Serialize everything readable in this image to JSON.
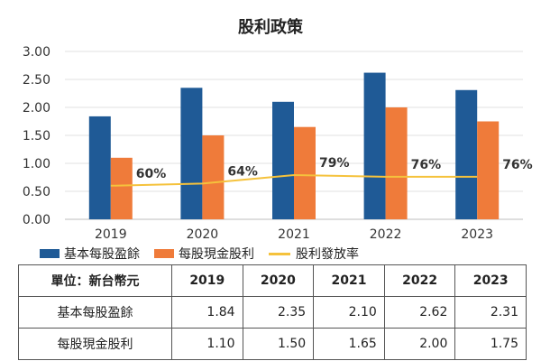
{
  "chart_data": {
    "type": "bar",
    "title": "股利政策",
    "categories": [
      "2019",
      "2020",
      "2021",
      "2022",
      "2023"
    ],
    "series": [
      {
        "name": "基本每股盈餘",
        "type": "bar",
        "color": "#1f5a96",
        "values": [
          1.84,
          2.35,
          2.1,
          2.62,
          2.31
        ]
      },
      {
        "name": "每股現金股利",
        "type": "bar",
        "color": "#ef7b3a",
        "values": [
          1.1,
          1.5,
          1.65,
          2.0,
          1.75
        ]
      },
      {
        "name": "股利發放率",
        "type": "line",
        "color": "#f5c23c",
        "values": [
          60,
          64,
          79,
          76,
          76
        ],
        "labels": [
          "60%",
          "64%",
          "79%",
          "76%",
          "76%"
        ]
      }
    ],
    "yticks": [
      "0.00",
      "0.50",
      "1.00",
      "1.50",
      "2.00",
      "2.50",
      "3.00"
    ],
    "ylim": [
      0,
      3
    ],
    "line_scale_note": "",
    "grid": true,
    "legend_position": "bottom"
  },
  "table": {
    "header": [
      "單位：新台幣元",
      "2019",
      "2020",
      "2021",
      "2022",
      "2023"
    ],
    "rows": [
      {
        "label": "基本每股盈餘",
        "values": [
          "1.84",
          "2.35",
          "2.10",
          "2.62",
          "2.31"
        ]
      },
      {
        "label": "每股現金股利",
        "values": [
          "1.10",
          "1.50",
          "1.65",
          "2.00",
          "1.75"
        ]
      }
    ]
  }
}
